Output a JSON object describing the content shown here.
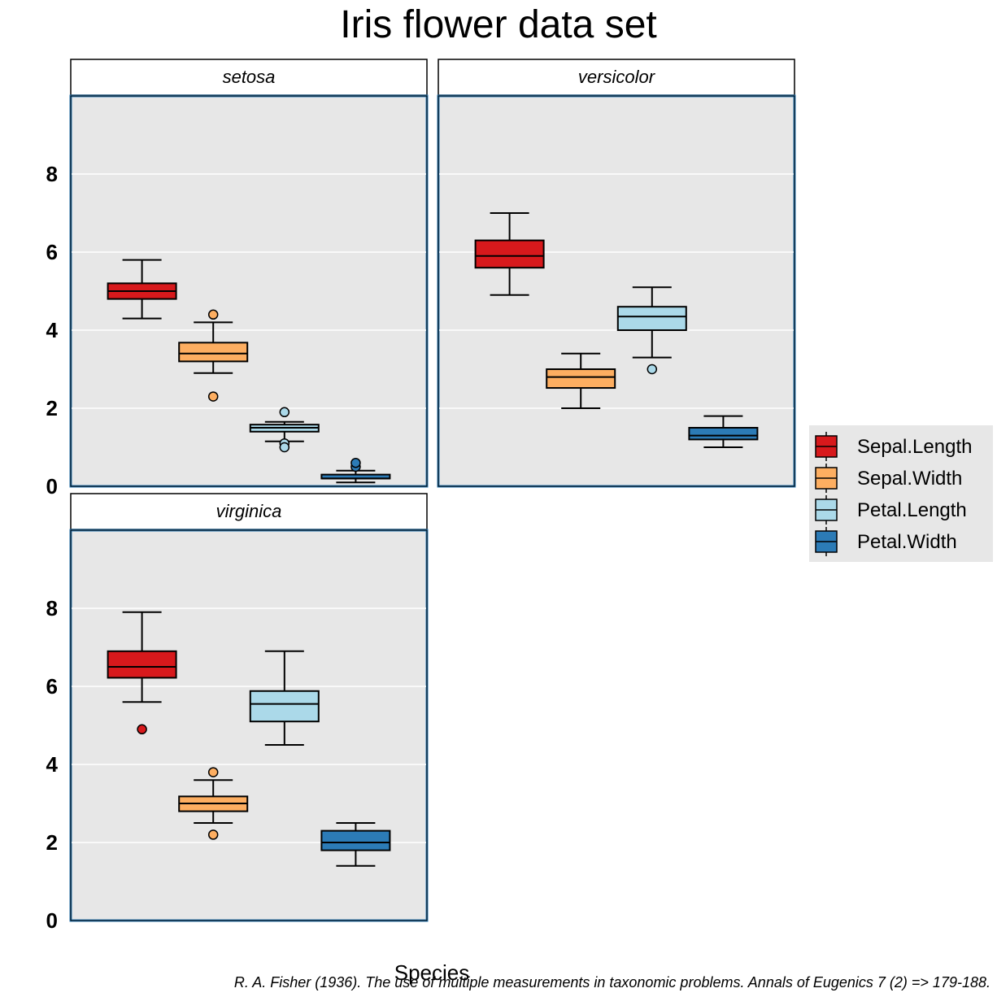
{
  "chart_data": {
    "type": "box",
    "title": "Iris flower data set",
    "xlabel": "Species",
    "ylabel": "",
    "caption": "R. A. Fisher (1936). The use of multiple measurements in taxonomic problems. Annals of Eugenics 7 (2) => 179-188.",
    "ylim": [
      0,
      10
    ],
    "yticks": [
      "0",
      "2",
      "4",
      "6",
      "8"
    ],
    "grid": true,
    "legend_position": "right",
    "categories": [
      "Sepal.Length",
      "Sepal.Width",
      "Petal.Length",
      "Petal.Width"
    ],
    "colors": {
      "Sepal.Length": "#d7191c",
      "Sepal.Width": "#fdae61",
      "Petal.Length": "#abd9e9",
      "Petal.Width": "#2c7bb6"
    },
    "panels": [
      {
        "name": "setosa",
        "boxes": [
          {
            "variable": "Sepal.Length",
            "min": 4.3,
            "q1": 4.8,
            "median": 5.0,
            "q3": 5.2,
            "max": 5.8,
            "outliers": []
          },
          {
            "variable": "Sepal.Width",
            "min": 2.9,
            "q1": 3.2,
            "median": 3.4,
            "q3": 3.68,
            "max": 4.2,
            "outliers": [
              4.4,
              2.3
            ]
          },
          {
            "variable": "Petal.Length",
            "min": 1.15,
            "q1": 1.4,
            "median": 1.5,
            "q3": 1.58,
            "max": 1.65,
            "outliers": [
              1.9,
              1.1,
              1.0
            ]
          },
          {
            "variable": "Petal.Width",
            "min": 0.1,
            "q1": 0.2,
            "median": 0.2,
            "q3": 0.3,
            "max": 0.4,
            "outliers": [
              0.5,
              0.6
            ]
          }
        ]
      },
      {
        "name": "versicolor",
        "boxes": [
          {
            "variable": "Sepal.Length",
            "min": 4.9,
            "q1": 5.6,
            "median": 5.9,
            "q3": 6.3,
            "max": 7.0,
            "outliers": []
          },
          {
            "variable": "Sepal.Width",
            "min": 2.0,
            "q1": 2.52,
            "median": 2.8,
            "q3": 3.0,
            "max": 3.4,
            "outliers": []
          },
          {
            "variable": "Petal.Length",
            "min": 3.3,
            "q1": 4.0,
            "median": 4.35,
            "q3": 4.6,
            "max": 5.1,
            "outliers": [
              3.0
            ]
          },
          {
            "variable": "Petal.Width",
            "min": 1.0,
            "q1": 1.2,
            "median": 1.3,
            "q3": 1.5,
            "max": 1.8,
            "outliers": []
          }
        ]
      },
      {
        "name": "virginica",
        "boxes": [
          {
            "variable": "Sepal.Length",
            "min": 5.6,
            "q1": 6.22,
            "median": 6.5,
            "q3": 6.9,
            "max": 7.9,
            "outliers": [
              4.9
            ]
          },
          {
            "variable": "Sepal.Width",
            "min": 2.5,
            "q1": 2.8,
            "median": 3.0,
            "q3": 3.18,
            "max": 3.6,
            "outliers": [
              3.8,
              2.2
            ]
          },
          {
            "variable": "Petal.Length",
            "min": 4.5,
            "q1": 5.1,
            "median": 5.55,
            "q3": 5.88,
            "max": 6.9,
            "outliers": []
          },
          {
            "variable": "Petal.Width",
            "min": 1.4,
            "q1": 1.8,
            "median": 2.0,
            "q3": 2.3,
            "max": 2.5,
            "outliers": []
          }
        ]
      }
    ]
  }
}
